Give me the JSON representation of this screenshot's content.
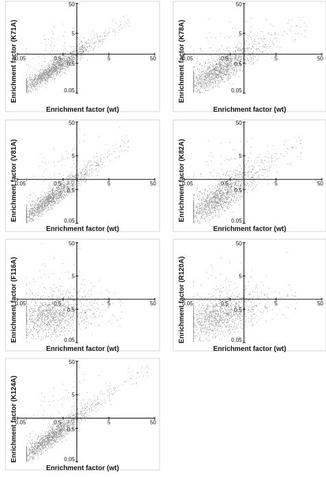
{
  "chart_data": [
    {
      "type": "scatter",
      "panel": "K71A",
      "xlabel": "Enrichment factor (wt)",
      "ylabel": "Enrichment factor (K71A)",
      "scale": "log",
      "xlim": [
        0.05,
        50
      ],
      "ylim": [
        0.05,
        50
      ],
      "x_ticks": [
        "0.05",
        "0.5",
        "5",
        "50"
      ],
      "y_ticks": [
        "0.05",
        "0.5",
        "5",
        "50"
      ],
      "axes_cross_at": [
        1,
        1
      ],
      "grid": false,
      "point_count_approx": 3000,
      "trend": {
        "slope": 1.0,
        "spread": "tight",
        "range": [
          0.08,
          15
        ]
      }
    },
    {
      "type": "scatter",
      "panel": "K78A",
      "xlabel": "Enrichment factor (wt)",
      "ylabel": "Enrichment factor (K78A)",
      "scale": "log",
      "xlim": [
        0.05,
        50
      ],
      "ylim": [
        0.05,
        50
      ],
      "x_ticks": [
        "0.05",
        "0.5",
        "5",
        "50"
      ],
      "y_ticks": [
        "0.05",
        "0.5",
        "5",
        "50"
      ],
      "axes_cross_at": [
        1,
        1
      ],
      "grid": false,
      "point_count_approx": 3000,
      "trend": {
        "slope": 0.85,
        "spread": "moderate",
        "range": [
          0.08,
          25
        ]
      }
    },
    {
      "type": "scatter",
      "panel": "V81A",
      "xlabel": "Enrichment factor (wt)",
      "ylabel": "Enrichment factor (V81A)",
      "scale": "log",
      "xlim": [
        0.05,
        50
      ],
      "ylim": [
        0.05,
        50
      ],
      "x_ticks": [
        "0.05",
        "0.5",
        "5",
        "50"
      ],
      "y_ticks": [
        "0.05",
        "0.5",
        "5",
        "50"
      ],
      "axes_cross_at": [
        1,
        1
      ],
      "grid": false,
      "point_count_approx": 3000,
      "trend": {
        "slope": 1.0,
        "spread": "tight",
        "range": [
          0.08,
          15
        ]
      }
    },
    {
      "type": "scatter",
      "panel": "K82A",
      "xlabel": "Enrichment factor (wt)",
      "ylabel": "Enrichment factor (K82A)",
      "scale": "log",
      "xlim": [
        0.05,
        50
      ],
      "ylim": [
        0.05,
        50
      ],
      "x_ticks": [
        "0.05",
        "0.5",
        "5",
        "50"
      ],
      "y_ticks": [
        "0.05",
        "0.5",
        "5",
        "50"
      ],
      "axes_cross_at": [
        1,
        1
      ],
      "grid": false,
      "point_count_approx": 3000,
      "trend": {
        "slope": 0.9,
        "spread": "moderate",
        "range": [
          0.08,
          20
        ]
      }
    },
    {
      "type": "scatter",
      "panel": "F116A",
      "xlabel": "Enrichment factor (wt)",
      "ylabel": "Enrichment factor (F116A)",
      "scale": "log",
      "xlim": [
        0.05,
        50
      ],
      "ylim": [
        0.05,
        50
      ],
      "x_ticks": [
        "0.05",
        "0.5",
        "5",
        "50"
      ],
      "y_ticks": [
        "0.05",
        "0.5",
        "5",
        "50"
      ],
      "axes_cross_at": [
        1,
        1
      ],
      "grid": false,
      "point_count_approx": 2500,
      "trend": {
        "slope": 0.2,
        "spread": "wide",
        "range": [
          0.08,
          10
        ]
      }
    },
    {
      "type": "scatter",
      "panel": "R120A",
      "xlabel": "Enrichment factor (wt)",
      "ylabel": "Enrichment factor (R120A)",
      "scale": "log",
      "xlim": [
        0.05,
        50
      ],
      "ylim": [
        0.05,
        50
      ],
      "x_ticks": [
        "0.05",
        "0.5",
        "5",
        "50"
      ],
      "y_ticks": [
        "0.05",
        "0.5",
        "5",
        "50"
      ],
      "axes_cross_at": [
        1,
        1
      ],
      "grid": false,
      "point_count_approx": 2500,
      "trend": {
        "slope": 0.35,
        "spread": "wide",
        "range": [
          0.08,
          15
        ]
      }
    },
    {
      "type": "scatter",
      "panel": "K124A",
      "xlabel": "Enrichment factor (wt)",
      "ylabel": "Enrichment factor (K124A)",
      "scale": "log",
      "xlim": [
        0.05,
        50
      ],
      "ylim": [
        0.05,
        50
      ],
      "x_ticks": [
        "0.05",
        "0.5",
        "5",
        "50"
      ],
      "y_ticks": [
        "0.05",
        "0.5",
        "5",
        "50"
      ],
      "axes_cross_at": [
        1,
        1
      ],
      "grid": false,
      "point_count_approx": 3000,
      "trend": {
        "slope": 1.0,
        "spread": "tight",
        "range": [
          0.08,
          40
        ]
      }
    }
  ],
  "colors": {
    "points": "#8a8a8a",
    "axes": "#111111",
    "frame": "#c8c8c8"
  }
}
